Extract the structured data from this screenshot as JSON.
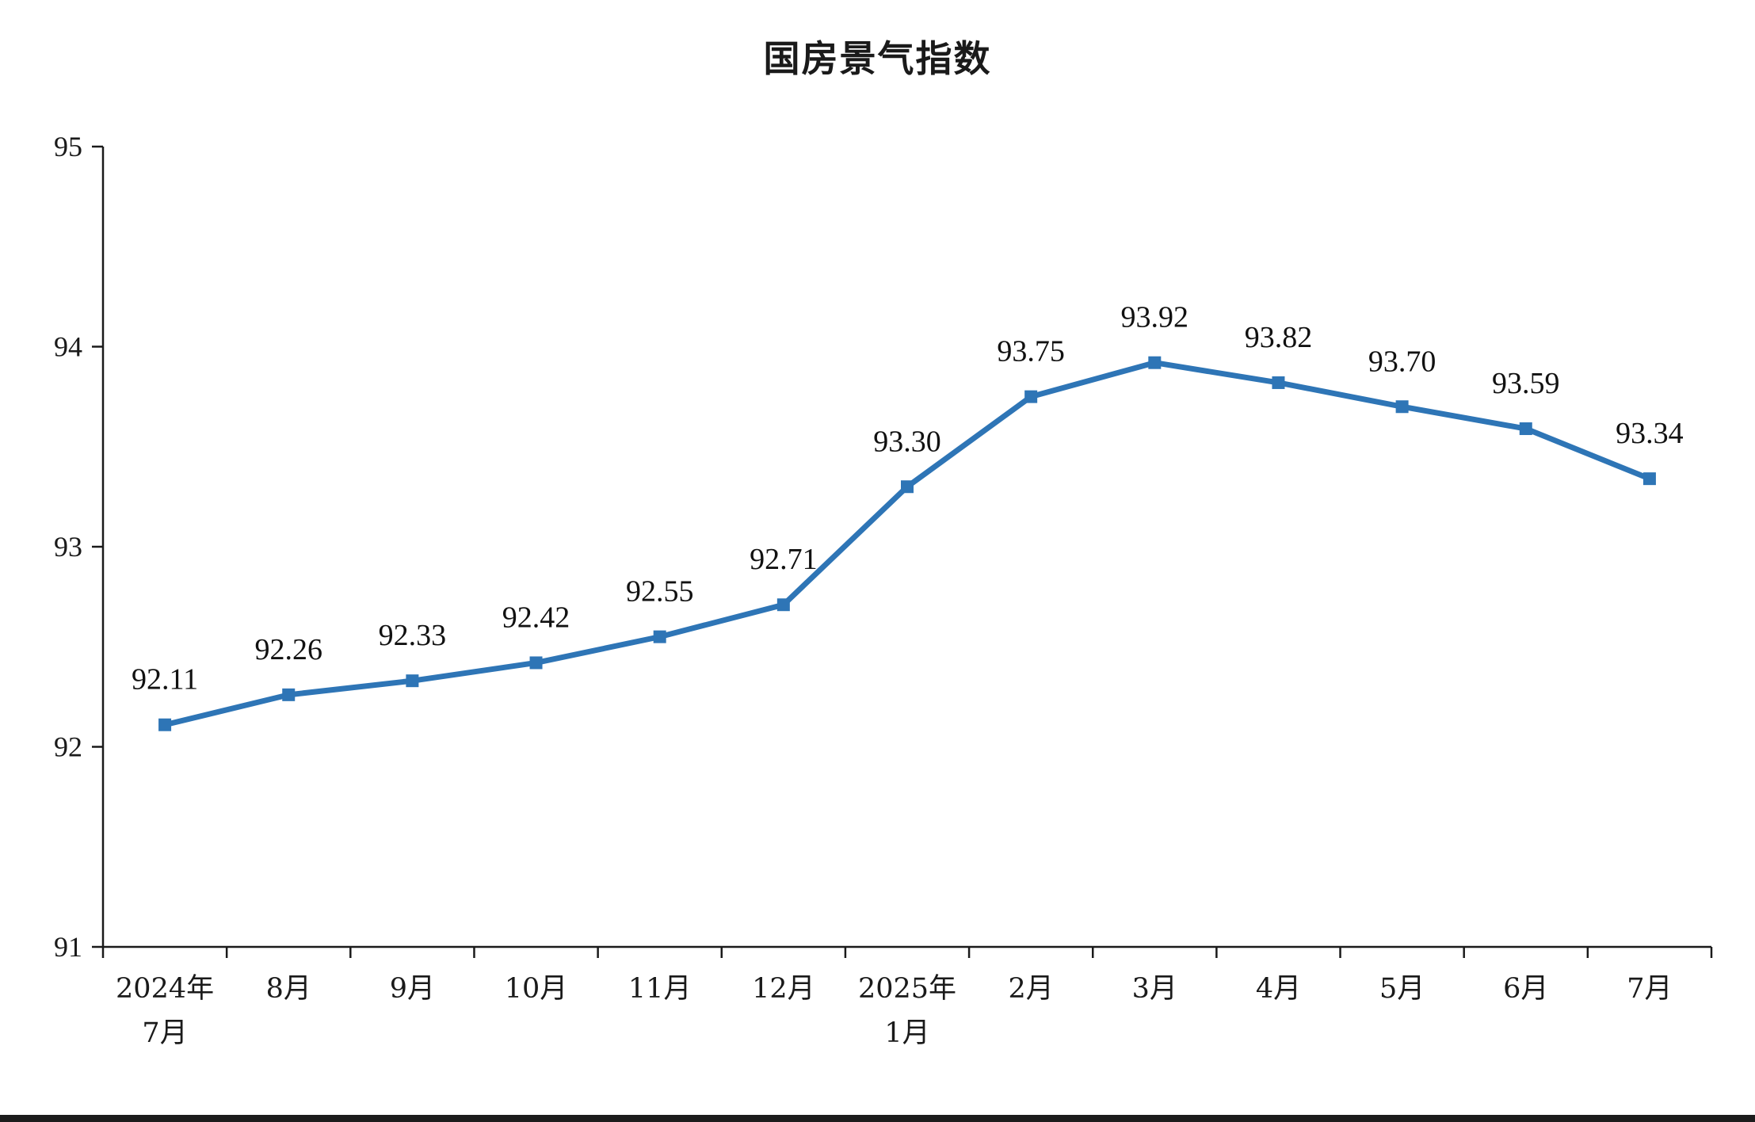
{
  "page": {
    "title": "国房景气指数"
  },
  "chart_data": {
    "type": "line",
    "title": "国房景气指数",
    "categories": [
      [
        "2024年",
        "7月"
      ],
      [
        "8月"
      ],
      [
        "9月"
      ],
      [
        "10月"
      ],
      [
        "11月"
      ],
      [
        "12月"
      ],
      [
        "2025年",
        "1月"
      ],
      [
        "2月"
      ],
      [
        "3月"
      ],
      [
        "4月"
      ],
      [
        "5月"
      ],
      [
        "6月"
      ],
      [
        "7月"
      ]
    ],
    "values": [
      92.11,
      92.26,
      92.33,
      92.42,
      92.55,
      92.71,
      93.3,
      93.75,
      93.92,
      93.82,
      93.7,
      93.59,
      93.34
    ],
    "data_labels": [
      "92.11",
      "92.26",
      "92.33",
      "92.42",
      "92.55",
      "92.71",
      "93.30",
      "93.75",
      "93.92",
      "93.82",
      "93.70",
      "93.59",
      "93.34"
    ],
    "ylim": [
      91,
      95
    ],
    "yticks": [
      95,
      94,
      93,
      92,
      91
    ],
    "ylabel": "",
    "xlabel": "",
    "grid": false,
    "legend_position": "none",
    "marker": "square",
    "series_color": "#2E75B6",
    "axis_color": "#1a1a1a"
  }
}
